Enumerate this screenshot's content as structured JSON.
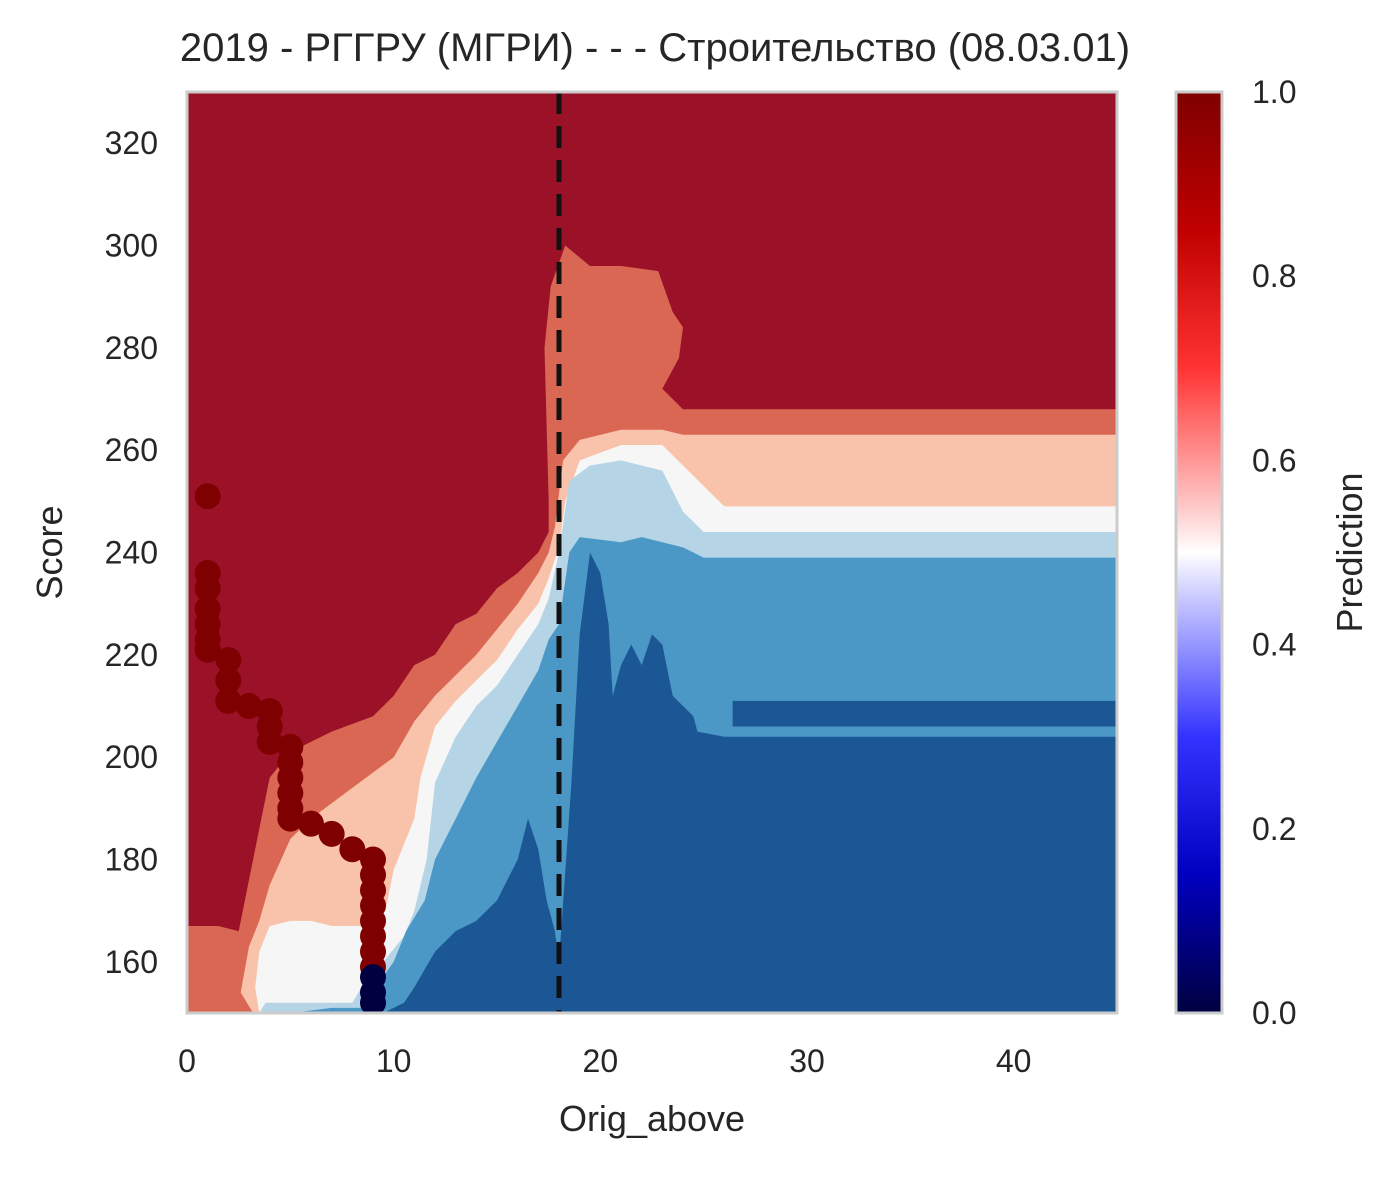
{
  "chart_data": {
    "type": "heatmap",
    "subtype": "filled-contour with scatter overlay",
    "title": "2019 - РГГРУ (МГРИ) - - - Строительство (08.03.01)",
    "xlabel": "Orig_above",
    "ylabel": "Score",
    "xlim": [
      0,
      45
    ],
    "ylim": [
      150,
      330
    ],
    "x_ticks": [
      0,
      10,
      20,
      30,
      40
    ],
    "y_ticks": [
      160,
      180,
      200,
      220,
      240,
      260,
      280,
      300,
      320
    ],
    "grid": false,
    "vline": {
      "x": 18,
      "style": "dashed",
      "color": "#111111"
    },
    "colorbar": {
      "label": "Prediction",
      "min": 0.0,
      "max": 1.0,
      "ticks": [
        "0.0",
        "0.2",
        "0.4",
        "0.6",
        "0.8",
        "1.0"
      ],
      "gradient": [
        {
          "at": 0.0,
          "color": "#000040"
        },
        {
          "at": 0.15,
          "color": "#0000c0"
        },
        {
          "at": 0.3,
          "color": "#3333ff"
        },
        {
          "at": 0.45,
          "color": "#c8c8ff"
        },
        {
          "at": 0.5,
          "color": "#ffffff"
        },
        {
          "at": 0.55,
          "color": "#ffc8c8"
        },
        {
          "at": 0.7,
          "color": "#ff3333"
        },
        {
          "at": 0.85,
          "color": "#c00000"
        },
        {
          "at": 1.0,
          "color": "#7f0000"
        }
      ]
    },
    "contour_levels": [
      {
        "level": "0.9-1.0",
        "color": "#9b1228"
      },
      {
        "level": "0.7-0.9",
        "color": "#da6754"
      },
      {
        "level": "0.6-0.7",
        "color": "#f8c3aa"
      },
      {
        "level": "0.5-0.6",
        "color": "#f6f6f6"
      },
      {
        "level": "0.4-0.5",
        "color": "#b5d5e7"
      },
      {
        "level": "0.2-0.4",
        "color": "#4b98c6"
      },
      {
        "level": "0.0-0.2",
        "color": "#1b5795"
      }
    ],
    "points": [
      {
        "x": 1,
        "y": 251,
        "p": 1.0
      },
      {
        "x": 1,
        "y": 236,
        "p": 1.0
      },
      {
        "x": 1,
        "y": 233,
        "p": 1.0
      },
      {
        "x": 1,
        "y": 229,
        "p": 1.0
      },
      {
        "x": 1,
        "y": 226,
        "p": 1.0
      },
      {
        "x": 1,
        "y": 223,
        "p": 1.0
      },
      {
        "x": 1,
        "y": 221,
        "p": 1.0
      },
      {
        "x": 2,
        "y": 219,
        "p": 1.0
      },
      {
        "x": 2,
        "y": 215,
        "p": 1.0
      },
      {
        "x": 2,
        "y": 211,
        "p": 1.0
      },
      {
        "x": 3,
        "y": 210,
        "p": 1.0
      },
      {
        "x": 4,
        "y": 209,
        "p": 1.0
      },
      {
        "x": 4,
        "y": 206,
        "p": 1.0
      },
      {
        "x": 4,
        "y": 203,
        "p": 1.0
      },
      {
        "x": 5,
        "y": 202,
        "p": 1.0
      },
      {
        "x": 5,
        "y": 199,
        "p": 1.0
      },
      {
        "x": 5,
        "y": 196,
        "p": 1.0
      },
      {
        "x": 5,
        "y": 193,
        "p": 1.0
      },
      {
        "x": 5,
        "y": 190,
        "p": 1.0
      },
      {
        "x": 5,
        "y": 188,
        "p": 1.0
      },
      {
        "x": 6,
        "y": 187,
        "p": 1.0
      },
      {
        "x": 7,
        "y": 185,
        "p": 1.0
      },
      {
        "x": 8,
        "y": 182,
        "p": 1.0
      },
      {
        "x": 9,
        "y": 180,
        "p": 1.0
      },
      {
        "x": 9,
        "y": 177,
        "p": 1.0
      },
      {
        "x": 9,
        "y": 174,
        "p": 1.0
      },
      {
        "x": 9,
        "y": 171,
        "p": 1.0
      },
      {
        "x": 9,
        "y": 168,
        "p": 1.0
      },
      {
        "x": 9,
        "y": 165,
        "p": 1.0
      },
      {
        "x": 9,
        "y": 162,
        "p": 1.0
      },
      {
        "x": 9,
        "y": 159,
        "p": 1.0
      },
      {
        "x": 9,
        "y": 157,
        "p": 0.0
      },
      {
        "x": 9,
        "y": 154,
        "p": 0.0
      },
      {
        "x": 9,
        "y": 152,
        "p": 0.0
      }
    ]
  }
}
